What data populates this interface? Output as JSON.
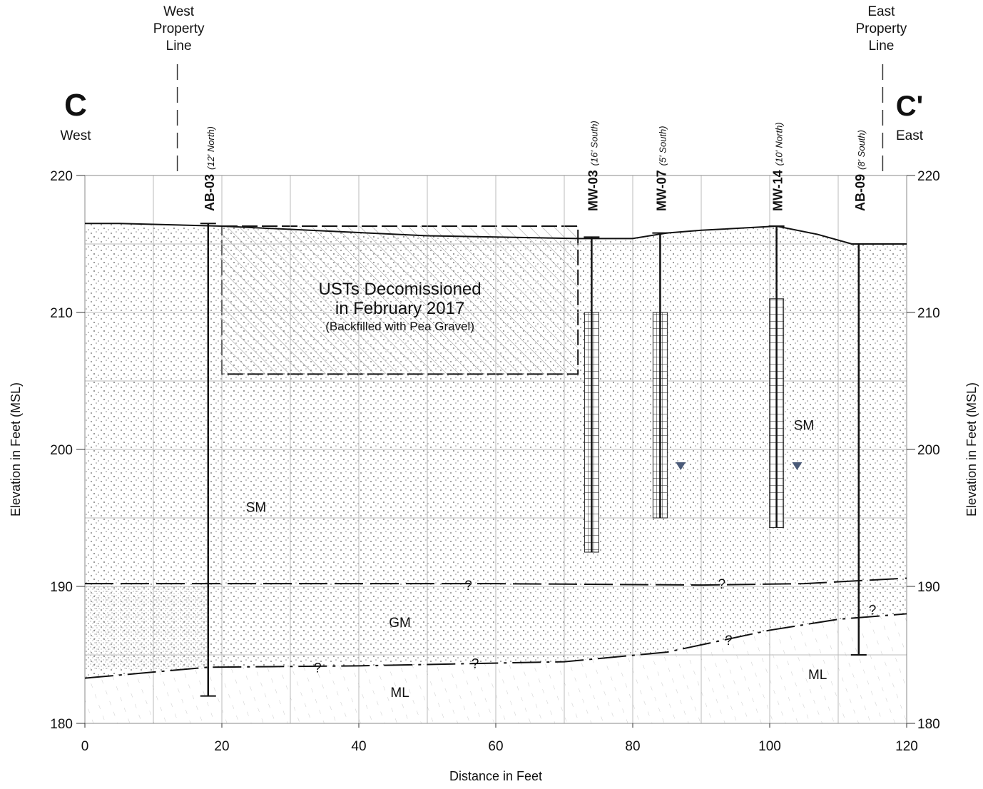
{
  "section": {
    "west_label": "C",
    "west_dir": "West",
    "east_label": "C'",
    "east_dir": "East",
    "x_axis_label": "Distance in Feet",
    "y_axis_label": "Elevation in Feet (MSL)",
    "xlim": [
      0,
      120
    ],
    "ylim": [
      180,
      220
    ],
    "xticks": [
      0,
      20,
      40,
      60,
      80,
      100,
      120
    ],
    "yticks": [
      180,
      190,
      200,
      210,
      220
    ],
    "x_grid": [
      10,
      20,
      30,
      40,
      50,
      60,
      70,
      80,
      90,
      100,
      110
    ],
    "y_grid": [
      185,
      190,
      195,
      200,
      205,
      210,
      215
    ],
    "property_lines": [
      {
        "lines": [
          "West",
          "Property",
          "Line"
        ],
        "x": 13.5
      },
      {
        "lines": [
          "East",
          "Property",
          "Line"
        ],
        "x": 116.5
      }
    ],
    "surface": {
      "x": [
        0,
        5,
        20,
        50,
        72,
        80,
        85,
        90,
        101,
        107,
        112,
        120
      ],
      "y": [
        216.5,
        216.5,
        216.3,
        215.6,
        215.4,
        215.4,
        215.8,
        216,
        216.3,
        215.7,
        215,
        215
      ]
    },
    "contact_sm_gm": {
      "x": [
        0,
        30,
        60,
        90,
        105,
        120
      ],
      "y": [
        190.2,
        190.2,
        190.2,
        190.1,
        190.2,
        190.6
      ]
    },
    "contact_gm_ml": {
      "x": [
        0,
        18,
        40,
        70,
        85,
        100,
        110,
        120
      ],
      "y": [
        183.3,
        184.1,
        184.2,
        184.5,
        185.2,
        186.8,
        187.6,
        188
      ]
    },
    "ust": {
      "lines": [
        "USTs Decomissioned",
        "in February 2017",
        "(Backfilled with Pea Gravel)"
      ],
      "x": [
        20,
        72
      ],
      "bottom": 205.5,
      "label_x": 46,
      "label_y": [
        211.3,
        209.9,
        208.7
      ]
    },
    "borings": [
      {
        "name": "AB-03",
        "note": "(12' North)",
        "x": 18,
        "top": 216.5,
        "bottom": 182
      },
      {
        "name": "MW-03",
        "note": "(16' South)",
        "x": 74,
        "top": 215.5,
        "bottom": 192.5,
        "screen": [
          210,
          192.5
        ]
      },
      {
        "name": "MW-07",
        "note": "(5' South)",
        "x": 84,
        "top": 215.8,
        "bottom": 195,
        "screen": [
          210,
          195
        ]
      },
      {
        "name": "MW-14",
        "note": "(10' North)",
        "x": 101,
        "top": 216.3,
        "bottom": 194.3,
        "screen": [
          211,
          194.3
        ]
      },
      {
        "name": "AB-09",
        "note": "(8' South)",
        "x": 113,
        "top": 215,
        "bottom": 185
      }
    ],
    "water_levels": [
      {
        "x": 87,
        "y": 198.8
      },
      {
        "x": 104,
        "y": 198.8
      }
    ],
    "soil_labels": [
      {
        "label": "SM",
        "x": 25,
        "y": 195.8
      },
      {
        "label": "SM",
        "x": 105,
        "y": 201.8
      },
      {
        "label": "GM",
        "x": 46,
        "y": 187.4
      },
      {
        "label": "ML",
        "x": 46,
        "y": 182.3
      },
      {
        "label": "ML",
        "x": 107,
        "y": 183.6
      }
    ],
    "queries": [
      {
        "label": "?",
        "x": 56,
        "y": 190.1
      },
      {
        "label": "?",
        "x": 93,
        "y": 190.2
      },
      {
        "label": "?",
        "x": 34,
        "y": 184.1
      },
      {
        "label": "?",
        "x": 57,
        "y": 184.4
      },
      {
        "label": "?",
        "x": 94,
        "y": 186.1
      },
      {
        "label": "?",
        "x": 115,
        "y": 188.3
      }
    ]
  }
}
